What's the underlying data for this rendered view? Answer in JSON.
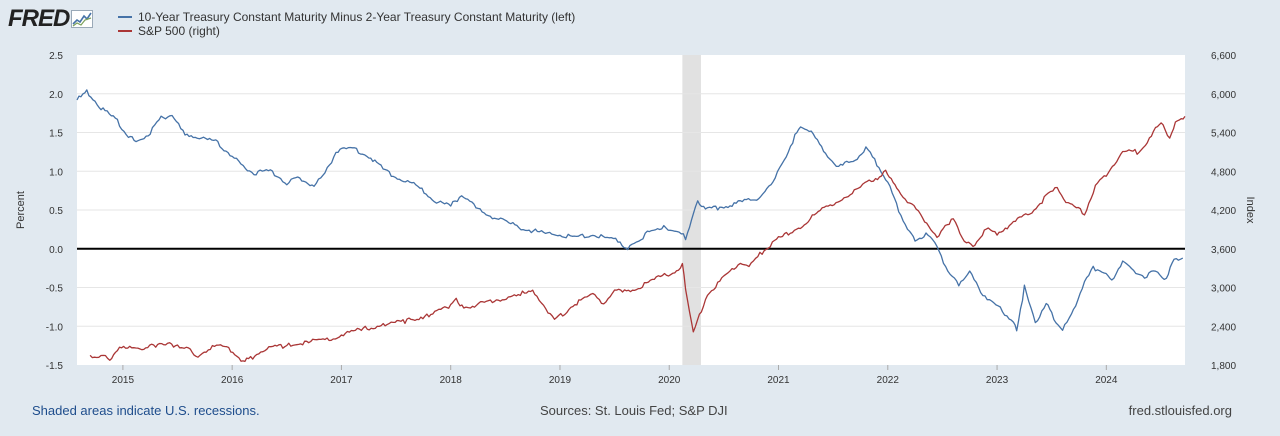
{
  "brand": {
    "name": "FRED"
  },
  "legend": [
    {
      "label": "10-Year Treasury Constant Maturity Minus 2-Year Treasury Constant Maturity (left)",
      "color": "#4572a7"
    },
    {
      "label": "S&P 500 (right)",
      "color": "#aa3636"
    }
  ],
  "footer": {
    "note": "Shaded areas indicate U.S. recessions.",
    "sources": "Sources: St. Louis Fed; S&P DJI",
    "site": "fred.stlouisfed.org"
  },
  "chart_data": {
    "type": "line",
    "title": "",
    "xlabel": "",
    "ylabel_left": "Percent",
    "ylabel_right": "Index",
    "x_range": [
      2014.58,
      2024.72
    ],
    "x_ticks": [
      "2015",
      "2016",
      "2017",
      "2018",
      "2019",
      "2020",
      "2021",
      "2022",
      "2023",
      "2024"
    ],
    "y_left": {
      "min": -1.5,
      "max": 2.5,
      "ticks": [
        "2.5",
        "2.0",
        "1.5",
        "1.0",
        "0.5",
        "0.0",
        "-0.5",
        "-1.0",
        "-1.5"
      ]
    },
    "y_right": {
      "min": 1800,
      "max": 6600,
      "ticks": [
        "6,600",
        "6,000",
        "5,400",
        "4,800",
        "4,200",
        "3,600",
        "3,000",
        "2,400",
        "1,800"
      ]
    },
    "reference_line": {
      "axis": "left",
      "value": 0
    },
    "recession": {
      "start": 2020.12,
      "end": 2020.29
    },
    "series": [
      {
        "name": "10-Year Treasury Constant Maturity Minus 2-Year Treasury Constant Maturity",
        "axis": "left",
        "color": "#4572a7",
        "x": [
          2014.58,
          2014.67,
          2014.8,
          2014.95,
          2015.05,
          2015.12,
          2015.25,
          2015.35,
          2015.45,
          2015.55,
          2015.7,
          2015.85,
          2016.0,
          2016.1,
          2016.2,
          2016.35,
          2016.5,
          2016.6,
          2016.75,
          2016.85,
          2016.95,
          2017.1,
          2017.25,
          2017.4,
          2017.55,
          2017.7,
          2017.85,
          2018.0,
          2018.1,
          2018.25,
          2018.4,
          2018.55,
          2018.7,
          2018.85,
          2019.0,
          2019.15,
          2019.3,
          2019.45,
          2019.55,
          2019.62,
          2019.7,
          2019.8,
          2019.95,
          2020.05,
          2020.15,
          2020.22,
          2020.26,
          2020.35,
          2020.5,
          2020.65,
          2020.8,
          2020.95,
          2021.05,
          2021.15,
          2021.22,
          2021.3,
          2021.45,
          2021.55,
          2021.7,
          2021.8,
          2021.9,
          2022.0,
          2022.1,
          2022.2,
          2022.25,
          2022.35,
          2022.45,
          2022.55,
          2022.65,
          2022.75,
          2022.85,
          2022.95,
          2023.05,
          2023.15,
          2023.18,
          2023.25,
          2023.35,
          2023.45,
          2023.5,
          2023.6,
          2023.7,
          2023.78,
          2023.88,
          2023.98,
          2024.05,
          2024.15,
          2024.25,
          2024.35,
          2024.45,
          2024.55,
          2024.62,
          2024.7
        ],
        "values": [
          1.92,
          2.02,
          1.82,
          1.65,
          1.45,
          1.38,
          1.5,
          1.7,
          1.72,
          1.5,
          1.42,
          1.38,
          1.2,
          1.05,
          0.98,
          1.0,
          0.85,
          0.9,
          0.82,
          0.97,
          1.25,
          1.3,
          1.2,
          1.0,
          0.9,
          0.8,
          0.62,
          0.55,
          0.7,
          0.5,
          0.4,
          0.32,
          0.25,
          0.2,
          0.18,
          0.15,
          0.18,
          0.12,
          0.1,
          -0.02,
          0.1,
          0.2,
          0.3,
          0.22,
          0.15,
          0.45,
          0.62,
          0.5,
          0.55,
          0.6,
          0.65,
          0.85,
          1.15,
          1.45,
          1.58,
          1.5,
          1.2,
          1.05,
          1.15,
          1.3,
          1.1,
          0.85,
          0.5,
          0.2,
          0.1,
          0.2,
          0.05,
          -0.3,
          -0.45,
          -0.3,
          -0.55,
          -0.68,
          -0.8,
          -0.95,
          -1.05,
          -0.5,
          -0.95,
          -0.7,
          -0.85,
          -1.05,
          -0.8,
          -0.5,
          -0.25,
          -0.3,
          -0.42,
          -0.15,
          -0.3,
          -0.35,
          -0.3,
          -0.38,
          -0.15,
          -0.12
        ]
      },
      {
        "name": "S&P 500",
        "axis": "right",
        "color": "#aa3636",
        "x": [
          2014.7,
          2014.8,
          2014.88,
          2014.95,
          2015.1,
          2015.3,
          2015.5,
          2015.6,
          2015.65,
          2015.8,
          2015.95,
          2016.1,
          2016.15,
          2016.3,
          2016.5,
          2016.7,
          2016.85,
          2017.0,
          2017.2,
          2017.4,
          2017.6,
          2017.8,
          2018.0,
          2018.05,
          2018.12,
          2018.2,
          2018.4,
          2018.6,
          2018.75,
          2018.85,
          2018.95,
          2019.1,
          2019.3,
          2019.4,
          2019.5,
          2019.7,
          2019.9,
          2020.05,
          2020.12,
          2020.15,
          2020.22,
          2020.35,
          2020.5,
          2020.65,
          2020.75,
          2020.85,
          2021.0,
          2021.2,
          2021.4,
          2021.6,
          2021.75,
          2021.85,
          2021.98,
          2022.1,
          2022.2,
          2022.3,
          2022.45,
          2022.6,
          2022.7,
          2022.78,
          2022.9,
          2023.0,
          2023.15,
          2023.3,
          2023.45,
          2023.55,
          2023.65,
          2023.8,
          2023.9,
          2024.0,
          2024.15,
          2024.3,
          2024.45,
          2024.52,
          2024.58,
          2024.65,
          2024.72
        ],
        "values": [
          1930,
          1960,
          1870,
          2050,
          2060,
          2100,
          2110,
          2080,
          1920,
          2070,
          2080,
          1870,
          1890,
          2050,
          2100,
          2170,
          2190,
          2270,
          2360,
          2430,
          2480,
          2580,
          2700,
          2840,
          2650,
          2720,
          2780,
          2900,
          2920,
          2750,
          2480,
          2700,
          2900,
          2750,
          2950,
          2980,
          3150,
          3250,
          3350,
          3000,
          2300,
          2900,
          3150,
          3400,
          3350,
          3550,
          3750,
          3950,
          4200,
          4400,
          4550,
          4650,
          4780,
          4500,
          4300,
          4150,
          3750,
          4100,
          3700,
          3650,
          3900,
          3850,
          4000,
          4150,
          4400,
          4550,
          4300,
          4150,
          4550,
          4750,
          5100,
          5100,
          5450,
          5550,
          5300,
          5600,
          5650
        ]
      }
    ]
  }
}
